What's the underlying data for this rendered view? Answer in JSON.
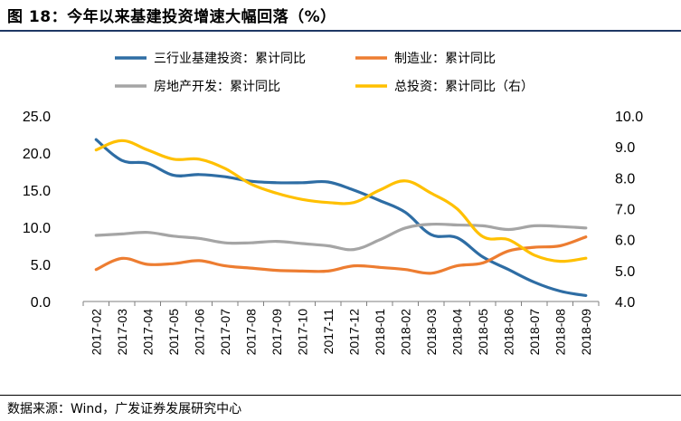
{
  "title": "图 18：今年以来基建投资增速大幅回落（%）",
  "source": "数据来源：Wind，广发证券发展研究中心",
  "chart_data": {
    "type": "line",
    "categories": [
      "2017-02",
      "2017-03",
      "2017-04",
      "2017-05",
      "2017-06",
      "2017-07",
      "2017-08",
      "2017-09",
      "2017-10",
      "2017-11",
      "2017-12",
      "2018-01",
      "2018-02",
      "2018-03",
      "2018-04",
      "2018-05",
      "2018-06",
      "2018-07",
      "2018-08",
      "2018-09"
    ],
    "ylim_left": [
      0,
      25
    ],
    "yticks_left": [
      "0.0",
      "5.0",
      "10.0",
      "15.0",
      "20.0",
      "25.0"
    ],
    "ylim_right": [
      4,
      10
    ],
    "yticks_right": [
      "4.0",
      "5.0",
      "6.0",
      "7.0",
      "8.0",
      "9.0",
      "10.0"
    ],
    "legend_position": "top",
    "grid": false,
    "series": [
      {
        "name": "三行业基建投资：累计同比",
        "axis": "left",
        "color": "#2e6da4",
        "values": [
          21.8,
          19.0,
          18.6,
          17.0,
          17.1,
          16.8,
          16.2,
          16.0,
          16.0,
          16.1,
          15.0,
          13.6,
          12.0,
          9.0,
          8.6,
          6.0,
          4.3,
          2.6,
          1.4,
          0.8
        ]
      },
      {
        "name": "制造业：累计同比",
        "axis": "left",
        "color": "#ed7d31",
        "values": [
          4.3,
          5.8,
          5.0,
          5.1,
          5.5,
          4.8,
          4.5,
          4.2,
          4.1,
          4.1,
          4.8,
          4.6,
          4.3,
          3.8,
          4.8,
          5.2,
          6.8,
          7.3,
          7.5,
          8.7
        ]
      },
      {
        "name": "房地产开发：累计同比",
        "axis": "left",
        "color": "#a5a5a5",
        "values": [
          8.9,
          9.1,
          9.3,
          8.8,
          8.5,
          7.9,
          7.9,
          8.1,
          7.8,
          7.5,
          7.0,
          8.3,
          9.9,
          10.4,
          10.3,
          10.2,
          9.7,
          10.2,
          10.1,
          9.9
        ]
      },
      {
        "name": "总投资：累计同比（右）",
        "axis": "right",
        "color": "#ffc000",
        "values": [
          8.9,
          9.2,
          8.9,
          8.6,
          8.6,
          8.3,
          7.8,
          7.5,
          7.3,
          7.2,
          7.2,
          7.6,
          7.9,
          7.5,
          7.0,
          6.1,
          6.0,
          5.5,
          5.3,
          5.4
        ]
      }
    ]
  }
}
